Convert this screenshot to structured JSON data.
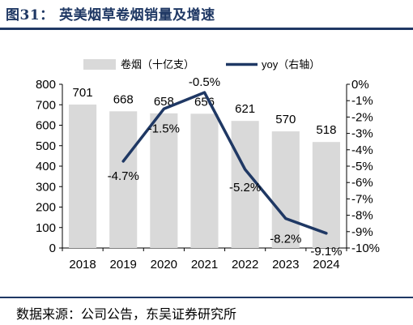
{
  "figure": {
    "title": "图31：  英美烟草卷烟销量及增速",
    "source": "数据来源：公司公告，东吴证券研究所"
  },
  "colors": {
    "bar": "#d9d9d9",
    "line": "#1f3864",
    "title": "#1f3864",
    "text": "#000000"
  },
  "chart_data": {
    "type": "bar",
    "title": "",
    "xlabel": "",
    "ylabel": "",
    "categories": [
      "2018",
      "2019",
      "2020",
      "2021",
      "2022",
      "2023",
      "2024"
    ],
    "legend_position": "top",
    "grid": false,
    "y_left": {
      "min": 0,
      "max": 800,
      "ticks": [
        "0",
        "100",
        "200",
        "300",
        "400",
        "500",
        "600",
        "700",
        "800"
      ]
    },
    "y_right": {
      "min": -10,
      "max": 0,
      "unit": "%",
      "ticks": [
        "0%",
        "-1%",
        "-2%",
        "-3%",
        "-4%",
        "-5%",
        "-6%",
        "-7%",
        "-8%",
        "-9%",
        "-10%"
      ]
    },
    "series": [
      {
        "name": "卷烟（十亿支）",
        "type": "bar",
        "axis": "left",
        "values": [
          701,
          668,
          658,
          656,
          621,
          570,
          518
        ],
        "labels": [
          "701",
          "668",
          "658",
          "656",
          "621",
          "570",
          "518"
        ]
      },
      {
        "name": "yoy（右轴）",
        "type": "line",
        "axis": "right",
        "values": [
          null,
          -4.7,
          -1.5,
          -0.5,
          -5.2,
          -8.2,
          -9.1
        ],
        "labels": [
          "",
          "-4.7%",
          "-1.5%",
          "-0.5%",
          "-5.2%",
          "-8.2%",
          "-9.1%"
        ]
      }
    ]
  }
}
